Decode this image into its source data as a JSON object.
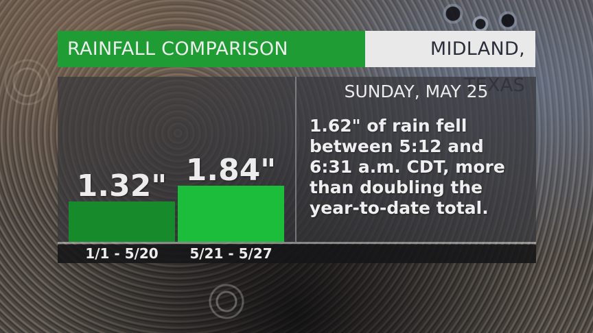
{
  "header": {
    "title": "RAINFALL COMPARISON",
    "location": "MIDLAND, TEXAS"
  },
  "colors": {
    "title_bg": "#1f9c34",
    "location_bg": "#e9e9e9",
    "bar_1": "#178a2b",
    "bar_2": "#1dbd3c"
  },
  "chart_data": {
    "type": "bar",
    "title": "RAINFALL COMPARISON",
    "subtitle": "MIDLAND, TEXAS",
    "categories": [
      "1/1 - 5/20",
      "5/21 - 5/27"
    ],
    "values": [
      1.32,
      1.84
    ],
    "value_labels": [
      "1.32\"",
      "1.84\""
    ],
    "units": "inches",
    "xlabel": "",
    "ylabel": "",
    "grid": false,
    "legend": null
  },
  "bars": [
    {
      "category": "1/1 - 5/20",
      "value_label": "1.32\""
    },
    {
      "category": "5/21 - 5/27",
      "value_label": "1.84\""
    }
  ],
  "annotation": {
    "date": "SUNDAY, MAY 25",
    "lines": [
      "1.62\" of rain fell",
      "between 5:12 and",
      "6:31 a.m. CDT, more",
      "than doubling the",
      "year-to-date total."
    ]
  }
}
